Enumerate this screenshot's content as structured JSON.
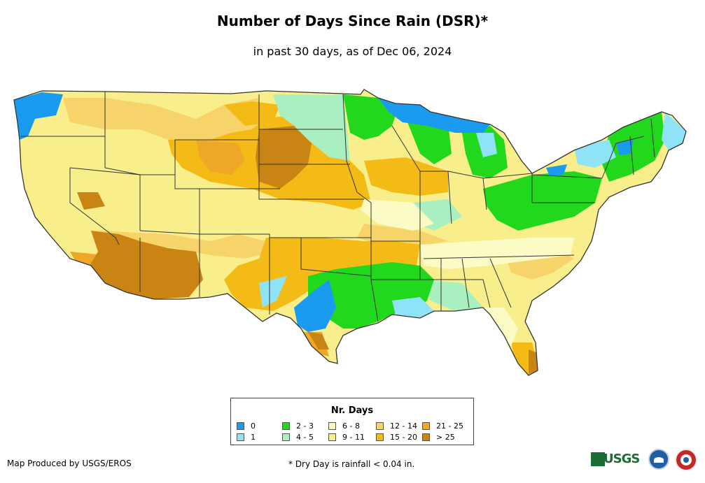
{
  "header": {
    "title": "Number of Days Since Rain (DSR)*",
    "subtitle": "in past 30 days, as of Dec 06, 2024"
  },
  "legend": {
    "title": "Nr. Days",
    "items": [
      {
        "label": "0",
        "color": "#1a9bf0"
      },
      {
        "label": "1",
        "color": "#8fe3f7"
      },
      {
        "label": "2 - 3",
        "color": "#22d81c"
      },
      {
        "label": "4 - 5",
        "color": "#a9efc0"
      },
      {
        "label": "6 - 8",
        "color": "#fbfbc6"
      },
      {
        "label": "9 - 11",
        "color": "#f8ef8c"
      },
      {
        "label": "12 - 14",
        "color": "#f7d46a"
      },
      {
        "label": "15 - 20",
        "color": "#f4bb16"
      },
      {
        "label": "21 - 25",
        "color": "#eea727"
      },
      {
        "label": "> 25",
        "color": "#c98414"
      }
    ]
  },
  "map": {
    "region": "contiguous-united-states",
    "background_color": "#f8ef8c",
    "border_color": "#333333"
  },
  "footer": {
    "credit": "Map Produced by USGS/EROS",
    "note": "* Dry Day is rainfall < 0.04 in."
  },
  "logos": {
    "usgs_text": "USGS"
  }
}
